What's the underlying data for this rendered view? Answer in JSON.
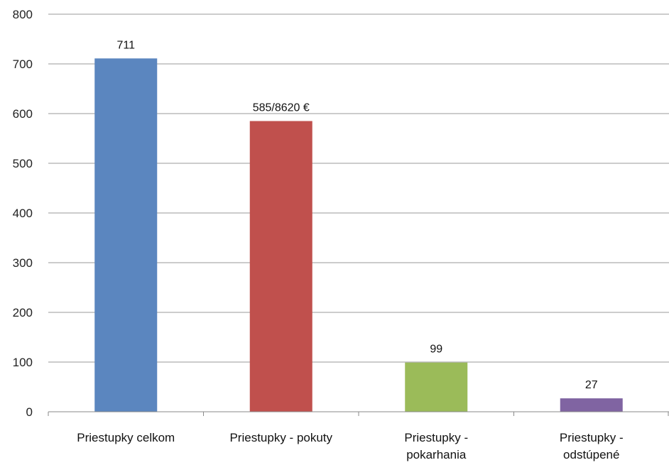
{
  "chart_data": {
    "type": "bar",
    "categories": [
      [
        "Priestupky celkom"
      ],
      [
        "Priestupky - pokuty"
      ],
      [
        "Priestupky -",
        "pokarhania"
      ],
      [
        "Priestupky -",
        "odstúpené"
      ]
    ],
    "values": [
      711,
      585,
      99,
      27
    ],
    "data_labels": [
      "711",
      "585/8620 €",
      "99",
      "27"
    ],
    "colors": [
      "#5b86bf",
      "#c0504d",
      "#9bbb59",
      "#8064a2"
    ],
    "title": "",
    "xlabel": "",
    "ylabel": "",
    "ylim": [
      0,
      800
    ],
    "yticks": [
      0,
      100,
      200,
      300,
      400,
      500,
      600,
      700,
      800
    ],
    "grid": true,
    "legend": "none"
  }
}
